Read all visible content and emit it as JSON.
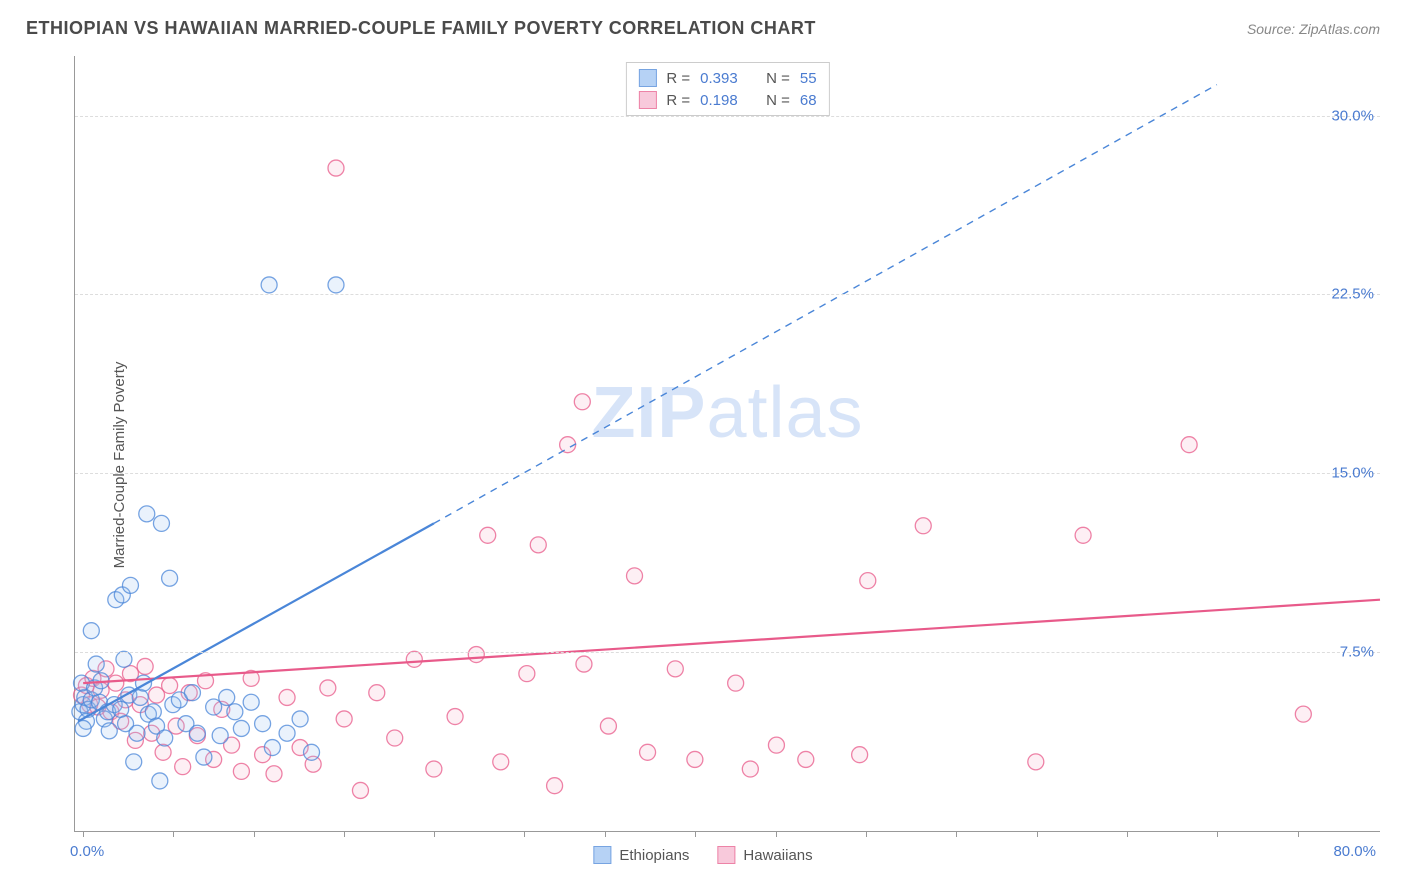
{
  "title": "ETHIOPIAN VS HAWAIIAN MARRIED-COUPLE FAMILY POVERTY CORRELATION CHART",
  "source": "Source: ZipAtlas.com",
  "ylabel": "Married-Couple Family Poverty",
  "watermark_a": "ZIP",
  "watermark_b": "atlas",
  "chart": {
    "type": "scatter",
    "xlim": [
      0,
      80
    ],
    "ylim": [
      0,
      32.5
    ],
    "x_origin_label": "0.0%",
    "x_max_label": "80.0%",
    "xtick_positions": [
      0.5,
      6,
      11,
      16.5,
      22,
      27.5,
      32.5,
      38,
      43,
      48.5,
      54,
      59,
      64.5,
      70,
      75
    ],
    "ygrid": [
      {
        "v": 7.5,
        "label": "7.5%"
      },
      {
        "v": 15.0,
        "label": "15.0%"
      },
      {
        "v": 22.5,
        "label": "22.5%"
      },
      {
        "v": 30.0,
        "label": "30.0%"
      }
    ],
    "background_color": "#ffffff",
    "grid_color": "#dddddd",
    "axis_color": "#999999",
    "label_color": "#4a7bd0",
    "title_color": "#4a4a4a",
    "title_fontsize": 18,
    "label_fontsize": 15,
    "marker_radius": 8,
    "marker_fill_opacity": 0.22,
    "marker_stroke_width": 1.3,
    "series": {
      "ethiopians": {
        "label": "Ethiopians",
        "color": "#4a86d8",
        "fill": "#9ec4f2",
        "R": "0.393",
        "N": "55",
        "trend": {
          "solid": [
            [
              0.2,
              4.6
            ],
            [
              22,
              12.9
            ]
          ],
          "dashed": [
            [
              22,
              12.9
            ],
            [
              70,
              31.3
            ]
          ],
          "width": 2.2
        },
        "points": [
          [
            0.3,
            5.0
          ],
          [
            0.5,
            5.3
          ],
          [
            0.6,
            5.6
          ],
          [
            0.4,
            6.2
          ],
          [
            0.8,
            5.1
          ],
          [
            0.7,
            4.6
          ],
          [
            0.5,
            4.3
          ],
          [
            1.0,
            5.5
          ],
          [
            1.2,
            6.0
          ],
          [
            1.0,
            8.4
          ],
          [
            1.3,
            7.0
          ],
          [
            1.5,
            5.4
          ],
          [
            1.8,
            4.7
          ],
          [
            1.6,
            6.3
          ],
          [
            2.0,
            5.0
          ],
          [
            2.4,
            5.3
          ],
          [
            2.1,
            4.2
          ],
          [
            2.8,
            5.1
          ],
          [
            2.5,
            9.7
          ],
          [
            2.9,
            9.9
          ],
          [
            3.0,
            7.2
          ],
          [
            3.3,
            5.7
          ],
          [
            3.1,
            4.5
          ],
          [
            3.6,
            2.9
          ],
          [
            3.4,
            10.3
          ],
          [
            3.8,
            4.1
          ],
          [
            4.0,
            5.6
          ],
          [
            4.2,
            6.2
          ],
          [
            4.5,
            4.9
          ],
          [
            4.4,
            13.3
          ],
          [
            4.8,
            5.0
          ],
          [
            5.0,
            4.4
          ],
          [
            5.3,
            12.9
          ],
          [
            5.5,
            3.9
          ],
          [
            5.2,
            2.1
          ],
          [
            6.0,
            5.3
          ],
          [
            5.8,
            10.6
          ],
          [
            6.4,
            5.5
          ],
          [
            6.8,
            4.5
          ],
          [
            7.2,
            5.8
          ],
          [
            7.5,
            4.1
          ],
          [
            7.9,
            3.1
          ],
          [
            8.5,
            5.2
          ],
          [
            8.9,
            4.0
          ],
          [
            9.3,
            5.6
          ],
          [
            9.8,
            5.0
          ],
          [
            10.2,
            4.3
          ],
          [
            10.8,
            5.4
          ],
          [
            11.5,
            4.5
          ],
          [
            12.1,
            3.5
          ],
          [
            13.0,
            4.1
          ],
          [
            13.8,
            4.7
          ],
          [
            11.9,
            22.9
          ],
          [
            16.0,
            22.9
          ],
          [
            14.5,
            3.3
          ]
        ]
      },
      "hawaiians": {
        "label": "Hawaiians",
        "color": "#e85a8a",
        "fill": "#f6b8cf",
        "R": "0.198",
        "N": "68",
        "trend": {
          "solid": [
            [
              0.5,
              6.2
            ],
            [
              80,
              9.7
            ]
          ],
          "dashed": null,
          "width": 2.2
        },
        "points": [
          [
            0.4,
            5.7
          ],
          [
            0.7,
            6.1
          ],
          [
            0.9,
            5.3
          ],
          [
            1.1,
            6.4
          ],
          [
            1.4,
            5.2
          ],
          [
            1.6,
            5.9
          ],
          [
            1.9,
            6.8
          ],
          [
            2.2,
            5.0
          ],
          [
            2.5,
            6.2
          ],
          [
            2.8,
            4.6
          ],
          [
            3.1,
            5.5
          ],
          [
            3.4,
            6.6
          ],
          [
            3.7,
            3.8
          ],
          [
            4.0,
            5.3
          ],
          [
            4.3,
            6.9
          ],
          [
            4.7,
            4.1
          ],
          [
            5.0,
            5.7
          ],
          [
            5.4,
            3.3
          ],
          [
            5.8,
            6.1
          ],
          [
            6.2,
            4.4
          ],
          [
            6.6,
            2.7
          ],
          [
            7.0,
            5.8
          ],
          [
            7.5,
            4.0
          ],
          [
            8.0,
            6.3
          ],
          [
            8.5,
            3.0
          ],
          [
            9.0,
            5.1
          ],
          [
            9.6,
            3.6
          ],
          [
            10.2,
            2.5
          ],
          [
            10.8,
            6.4
          ],
          [
            11.5,
            3.2
          ],
          [
            12.2,
            2.4
          ],
          [
            13.0,
            5.6
          ],
          [
            13.8,
            3.5
          ],
          [
            14.6,
            2.8
          ],
          [
            15.5,
            6.0
          ],
          [
            16.5,
            4.7
          ],
          [
            16.0,
            27.8
          ],
          [
            17.5,
            1.7
          ],
          [
            18.5,
            5.8
          ],
          [
            19.6,
            3.9
          ],
          [
            20.8,
            7.2
          ],
          [
            22.0,
            2.6
          ],
          [
            23.3,
            4.8
          ],
          [
            24.6,
            7.4
          ],
          [
            25.3,
            12.4
          ],
          [
            26.1,
            2.9
          ],
          [
            27.7,
            6.6
          ],
          [
            28.4,
            12.0
          ],
          [
            29.4,
            1.9
          ],
          [
            30.2,
            16.2
          ],
          [
            31.2,
            7.0
          ],
          [
            31.1,
            18.0
          ],
          [
            32.7,
            4.4
          ],
          [
            34.3,
            10.7
          ],
          [
            35.1,
            3.3
          ],
          [
            36.8,
            6.8
          ],
          [
            38.0,
            3.0
          ],
          [
            40.5,
            6.2
          ],
          [
            41.4,
            2.6
          ],
          [
            43.0,
            3.6
          ],
          [
            44.8,
            3.0
          ],
          [
            48.1,
            3.2
          ],
          [
            48.6,
            10.5
          ],
          [
            52.0,
            12.8
          ],
          [
            58.9,
            2.9
          ],
          [
            61.8,
            12.4
          ],
          [
            68.3,
            16.2
          ],
          [
            75.3,
            4.9
          ]
        ]
      }
    }
  },
  "legend_top": [
    {
      "series": "ethiopians"
    },
    {
      "series": "hawaiians"
    }
  ],
  "legend_bottom": [
    "ethiopians",
    "hawaiians"
  ]
}
